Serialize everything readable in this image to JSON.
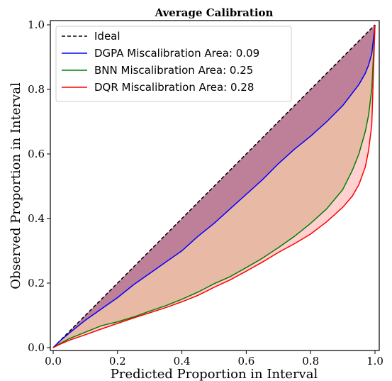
{
  "chart_data": {
    "type": "line",
    "title": "Average Calibration",
    "xlabel": "Predicted Proportion in Interval",
    "ylabel": "Observed Proportion in Interval",
    "xlim": [
      0,
      1
    ],
    "ylim": [
      0,
      1
    ],
    "xticks": [
      0.0,
      0.2,
      0.4,
      0.6,
      0.8,
      1.0
    ],
    "yticks": [
      0.0,
      0.2,
      0.4,
      0.6,
      0.8,
      1.0
    ],
    "xtick_labels": [
      "0.0",
      "0.2",
      "0.4",
      "0.6",
      "0.8",
      "1.0"
    ],
    "ytick_labels": [
      "0.0",
      "0.2",
      "0.4",
      "0.6",
      "0.8",
      "1.0"
    ],
    "grid": false,
    "legend_position": "top-left",
    "series": [
      {
        "name": "Ideal",
        "color": "#000000",
        "dash": true,
        "x": [
          0,
          1
        ],
        "y": [
          0,
          1
        ]
      },
      {
        "name": "DGPA Miscalibration Area: 0.09",
        "color": "#0000ff",
        "fill": "#8b3a8b",
        "x": [
          0,
          0.02,
          0.05,
          0.1,
          0.15,
          0.2,
          0.25,
          0.3,
          0.35,
          0.4,
          0.45,
          0.5,
          0.55,
          0.6,
          0.65,
          0.7,
          0.75,
          0.8,
          0.85,
          0.9,
          0.95,
          0.97,
          0.98,
          0.99,
          1.0
        ],
        "y": [
          0,
          0.02,
          0.045,
          0.085,
          0.12,
          0.155,
          0.195,
          0.23,
          0.265,
          0.3,
          0.345,
          0.385,
          0.43,
          0.475,
          0.52,
          0.57,
          0.615,
          0.655,
          0.7,
          0.75,
          0.815,
          0.85,
          0.875,
          0.91,
          1.0
        ]
      },
      {
        "name": "BNN Miscalibration Area: 0.25",
        "color": "#008000",
        "fill": "#cd9b6e",
        "x": [
          0,
          0.02,
          0.05,
          0.1,
          0.15,
          0.2,
          0.25,
          0.3,
          0.35,
          0.4,
          0.45,
          0.5,
          0.55,
          0.6,
          0.65,
          0.7,
          0.75,
          0.8,
          0.85,
          0.9,
          0.93,
          0.95,
          0.97,
          0.98,
          0.99,
          1.0
        ],
        "y": [
          0,
          0.012,
          0.028,
          0.048,
          0.068,
          0.08,
          0.095,
          0.113,
          0.13,
          0.15,
          0.172,
          0.198,
          0.22,
          0.248,
          0.277,
          0.31,
          0.345,
          0.385,
          0.43,
          0.49,
          0.55,
          0.6,
          0.67,
          0.72,
          0.8,
          1.0
        ]
      },
      {
        "name": "DQR Miscalibration Area: 0.28",
        "color": "#ff0000",
        "fill": "#ff9999",
        "x": [
          0,
          0.02,
          0.05,
          0.1,
          0.15,
          0.2,
          0.25,
          0.3,
          0.35,
          0.4,
          0.45,
          0.5,
          0.55,
          0.6,
          0.65,
          0.7,
          0.75,
          0.8,
          0.85,
          0.9,
          0.93,
          0.95,
          0.97,
          0.98,
          0.99,
          1.0
        ],
        "y": [
          0,
          0.01,
          0.023,
          0.04,
          0.058,
          0.075,
          0.092,
          0.108,
          0.124,
          0.142,
          0.162,
          0.187,
          0.21,
          0.237,
          0.265,
          0.295,
          0.322,
          0.352,
          0.39,
          0.435,
          0.47,
          0.505,
          0.56,
          0.61,
          0.69,
          1.0
        ]
      }
    ]
  }
}
